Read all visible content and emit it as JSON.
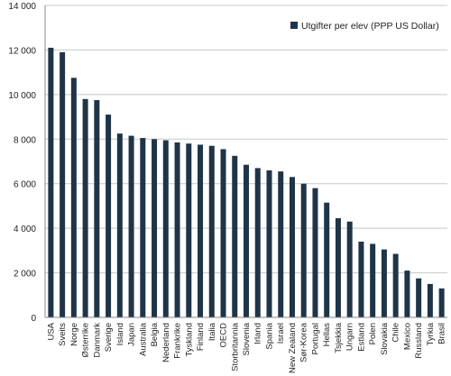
{
  "chart_data": {
    "type": "bar",
    "title": "",
    "xlabel": "",
    "ylabel": "",
    "ylim": [
      0,
      14000
    ],
    "yticks": [
      0,
      2000,
      4000,
      6000,
      8000,
      10000,
      12000,
      14000
    ],
    "ytick_labels": [
      "0",
      "2 000",
      "4 000",
      "6 000",
      "8 000",
      "10 000",
      "12 000",
      "14 000"
    ],
    "grid": true,
    "legend_position": "top-right",
    "bar_color": "#1f3447",
    "categories": [
      "USA",
      "Sveits",
      "Norge",
      "Østerrike",
      "Danmark",
      "Sverige",
      "Island",
      "Japan",
      "Australia",
      "Belgia",
      "Nederland",
      "Frankrike",
      "Tyskland",
      "Finland",
      "Italia",
      "OECD",
      "Storbritannia",
      "Slovenia",
      "Irland",
      "Spania",
      "Israel",
      "New Zealand",
      "Sør-Korea",
      "Portugal",
      "Hellas",
      "Tsjekkia",
      "Ungarn",
      "Estland",
      "Polen",
      "Slovakia",
      "Chile",
      "Mexico",
      "Russland",
      "Tyrkia",
      "Brasil"
    ],
    "series": [
      {
        "name": "Utgifter per elev (PPP US Dollar)",
        "values": [
          12100,
          11900,
          10750,
          9800,
          9750,
          9100,
          8250,
          8150,
          8050,
          8000,
          7950,
          7850,
          7800,
          7750,
          7700,
          7550,
          7250,
          6850,
          6700,
          6600,
          6550,
          6300,
          6000,
          5800,
          5150,
          4450,
          4300,
          3400,
          3300,
          3050,
          2850,
          2100,
          1750,
          1500,
          1300
        ]
      }
    ]
  }
}
